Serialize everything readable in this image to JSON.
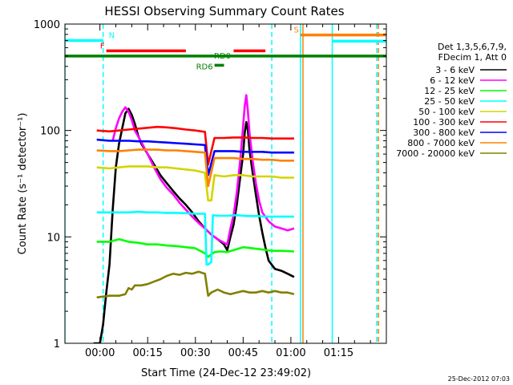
{
  "chart_data": {
    "type": "line",
    "title": "HESSI Observing Summary Count Rates",
    "xlabel": "Start Time (24-Dec-12 23:49:02)",
    "ylabel": "Count Rate (s⁻¹ detector⁻¹)",
    "yscale": "log",
    "ylim": [
      1,
      1000
    ],
    "xlim": [
      -11,
      90
    ],
    "x_unit": "minutes after 00:00",
    "x_tick_labels": [
      "00:00",
      "00:15",
      "00:30",
      "00:45",
      "01:00",
      "01:15"
    ],
    "x_ticks": [
      0,
      15,
      30,
      45,
      60,
      75
    ],
    "y_tick_labels": [
      "1",
      "10",
      "100",
      "1000"
    ],
    "y_ticks": [
      1,
      10,
      100,
      1000
    ],
    "timestamp": "25-Dec-2012 07:03",
    "legend": {
      "placement": "right",
      "header": [
        "Det 1,3,5,6,7,9,",
        "FDecim 1, Att 0"
      ]
    },
    "series": [
      {
        "name": "3 - 6 keV",
        "color": "#000000",
        "points": [
          [
            -2,
            1
          ],
          [
            0,
            1
          ],
          [
            1,
            1.5
          ],
          [
            2,
            3
          ],
          [
            3,
            5.5
          ],
          [
            4,
            18
          ],
          [
            5,
            45
          ],
          [
            6,
            75
          ],
          [
            7,
            105
          ],
          [
            8,
            145
          ],
          [
            9,
            160
          ],
          [
            10,
            140
          ],
          [
            11,
            115
          ],
          [
            12,
            90
          ],
          [
            13,
            75
          ],
          [
            15,
            60
          ],
          [
            17,
            48
          ],
          [
            19,
            38
          ],
          [
            21,
            32
          ],
          [
            23,
            27
          ],
          [
            25,
            23
          ],
          [
            27,
            20
          ],
          [
            29,
            17
          ],
          [
            31,
            14
          ],
          [
            33,
            12
          ],
          [
            35,
            10.5
          ],
          [
            37,
            9.5
          ],
          [
            39,
            8.5
          ],
          [
            40,
            7.5
          ],
          [
            41,
            10
          ],
          [
            42,
            13
          ],
          [
            43,
            20
          ],
          [
            44,
            35
          ],
          [
            45,
            60
          ],
          [
            45.5,
            95
          ],
          [
            46,
            120
          ],
          [
            46.5,
            100
          ],
          [
            47,
            65
          ],
          [
            48,
            40
          ],
          [
            49,
            25
          ],
          [
            50,
            16
          ],
          [
            51,
            11
          ],
          [
            52,
            8
          ],
          [
            53,
            6
          ],
          [
            55,
            5
          ],
          [
            57,
            4.8
          ],
          [
            59,
            4.5
          ],
          [
            61,
            4.2
          ]
        ]
      },
      {
        "name": "6 - 12 keV",
        "color": "#ff00ff",
        "points": [
          [
            4,
            80
          ],
          [
            5,
            105
          ],
          [
            6,
            130
          ],
          [
            7,
            150
          ],
          [
            8,
            165
          ],
          [
            9,
            150
          ],
          [
            10,
            125
          ],
          [
            11,
            100
          ],
          [
            13,
            78
          ],
          [
            15,
            60
          ],
          [
            17,
            45
          ],
          [
            19,
            35
          ],
          [
            21,
            29
          ],
          [
            23,
            25
          ],
          [
            25,
            21
          ],
          [
            27,
            18
          ],
          [
            29,
            15.5
          ],
          [
            31,
            13.5
          ],
          [
            33,
            12
          ],
          [
            35,
            10.5
          ],
          [
            37,
            9.5
          ],
          [
            39,
            8.8
          ],
          [
            40,
            8.5
          ],
          [
            41,
            12
          ],
          [
            42,
            16
          ],
          [
            43,
            26
          ],
          [
            44,
            50
          ],
          [
            45,
            110
          ],
          [
            45.5,
            170
          ],
          [
            46,
            215
          ],
          [
            46.5,
            150
          ],
          [
            47,
            95
          ],
          [
            48,
            52
          ],
          [
            49,
            32
          ],
          [
            50,
            22
          ],
          [
            51,
            17
          ],
          [
            53,
            14
          ],
          [
            55,
            12.5
          ],
          [
            57,
            12
          ],
          [
            59,
            11.5
          ],
          [
            61,
            12
          ]
        ]
      },
      {
        "name": "12 - 25 keV",
        "color": "#00ff00",
        "points": [
          [
            -1,
            9
          ],
          [
            3,
            9
          ],
          [
            6,
            9.5
          ],
          [
            9,
            9
          ],
          [
            12,
            8.8
          ],
          [
            15,
            8.5
          ],
          [
            18,
            8.5
          ],
          [
            21,
            8.3
          ],
          [
            24,
            8.2
          ],
          [
            27,
            8.0
          ],
          [
            30,
            7.8
          ],
          [
            33,
            7.0
          ],
          [
            34,
            6.5
          ],
          [
            36,
            7.2
          ],
          [
            38,
            7.3
          ],
          [
            40,
            7.2
          ],
          [
            42,
            7.5
          ],
          [
            45,
            8
          ],
          [
            48,
            7.8
          ],
          [
            51,
            7.6
          ],
          [
            54,
            7.4
          ],
          [
            57,
            7.4
          ],
          [
            61,
            7.3
          ]
        ]
      },
      {
        "name": "25 - 50 keV",
        "color": "#00ffff",
        "points": [
          [
            -1,
            17
          ],
          [
            3,
            17
          ],
          [
            6,
            17
          ],
          [
            9,
            17
          ],
          [
            12,
            17.2
          ],
          [
            15,
            17
          ],
          [
            18,
            17
          ],
          [
            21,
            16.8
          ],
          [
            24,
            16.8
          ],
          [
            27,
            16.7
          ],
          [
            30,
            16.5
          ],
          [
            33,
            16.5
          ],
          [
            33.5,
            5.5
          ],
          [
            34,
            5.5
          ],
          [
            35,
            5.8
          ],
          [
            35.5,
            16
          ],
          [
            37,
            15.8
          ],
          [
            40,
            15.8
          ],
          [
            43,
            16
          ],
          [
            46,
            15.7
          ],
          [
            49,
            15.7
          ],
          [
            52,
            15.5
          ],
          [
            55,
            15.5
          ],
          [
            58,
            15.5
          ],
          [
            61,
            15.5
          ]
        ]
      },
      {
        "name": "50 - 100 keV",
        "color": "#d4d400",
        "points": [
          [
            -1,
            45
          ],
          [
            3,
            44
          ],
          [
            6,
            45
          ],
          [
            9,
            46
          ],
          [
            12,
            46
          ],
          [
            15,
            46
          ],
          [
            18,
            45
          ],
          [
            21,
            45
          ],
          [
            24,
            44
          ],
          [
            27,
            43
          ],
          [
            30,
            42
          ],
          [
            33,
            40
          ],
          [
            34,
            22
          ],
          [
            35,
            22
          ],
          [
            36,
            38
          ],
          [
            39,
            37
          ],
          [
            42,
            38
          ],
          [
            45,
            38
          ],
          [
            48,
            37
          ],
          [
            51,
            37
          ],
          [
            54,
            37
          ],
          [
            57,
            36
          ],
          [
            61,
            36
          ]
        ]
      },
      {
        "name": "100 - 300 keV",
        "color": "#ff0000",
        "points": [
          [
            -1,
            100
          ],
          [
            3,
            98
          ],
          [
            6,
            100
          ],
          [
            9,
            102
          ],
          [
            12,
            104
          ],
          [
            15,
            106
          ],
          [
            18,
            108
          ],
          [
            21,
            107
          ],
          [
            24,
            105
          ],
          [
            27,
            102
          ],
          [
            30,
            100
          ],
          [
            33,
            97
          ],
          [
            34,
            48
          ],
          [
            36,
            85
          ],
          [
            39,
            85
          ],
          [
            42,
            86
          ],
          [
            45,
            86
          ],
          [
            48,
            85
          ],
          [
            51,
            85
          ],
          [
            54,
            84
          ],
          [
            57,
            84
          ],
          [
            61,
            84
          ]
        ]
      },
      {
        "name": "300 - 800 keV",
        "color": "#0000ff",
        "points": [
          [
            -1,
            82
          ],
          [
            3,
            80
          ],
          [
            6,
            80
          ],
          [
            9,
            80
          ],
          [
            12,
            79
          ],
          [
            15,
            79
          ],
          [
            18,
            78
          ],
          [
            21,
            77
          ],
          [
            24,
            76
          ],
          [
            27,
            75
          ],
          [
            30,
            74
          ],
          [
            33,
            73
          ],
          [
            34,
            38
          ],
          [
            36,
            64
          ],
          [
            39,
            64
          ],
          [
            42,
            64
          ],
          [
            45,
            63
          ],
          [
            48,
            63
          ],
          [
            51,
            63
          ],
          [
            54,
            62
          ],
          [
            57,
            62
          ],
          [
            61,
            62
          ]
        ]
      },
      {
        "name": "800 - 7000 keV",
        "color": "#ff8000",
        "points": [
          [
            -1,
            65
          ],
          [
            3,
            64
          ],
          [
            6,
            64
          ],
          [
            9,
            65
          ],
          [
            12,
            66
          ],
          [
            15,
            66
          ],
          [
            18,
            66
          ],
          [
            21,
            65
          ],
          [
            24,
            65
          ],
          [
            27,
            64
          ],
          [
            30,
            63
          ],
          [
            33,
            62
          ],
          [
            34,
            30
          ],
          [
            36,
            55
          ],
          [
            39,
            55
          ],
          [
            42,
            55
          ],
          [
            45,
            54
          ],
          [
            48,
            54
          ],
          [
            51,
            53
          ],
          [
            54,
            53
          ],
          [
            57,
            52
          ],
          [
            61,
            52
          ]
        ]
      },
      {
        "name": "7000 - 20000 keV",
        "color": "#808000",
        "points": [
          [
            -1,
            2.7
          ],
          [
            3,
            2.8
          ],
          [
            6,
            2.8
          ],
          [
            8,
            2.9
          ],
          [
            9,
            3.3
          ],
          [
            10,
            3.2
          ],
          [
            11,
            3.5
          ],
          [
            13,
            3.5
          ],
          [
            15,
            3.6
          ],
          [
            17,
            3.8
          ],
          [
            19,
            4.0
          ],
          [
            21,
            4.3
          ],
          [
            23,
            4.5
          ],
          [
            25,
            4.4
          ],
          [
            27,
            4.6
          ],
          [
            29,
            4.5
          ],
          [
            31,
            4.7
          ],
          [
            33,
            4.5
          ],
          [
            34,
            2.8
          ],
          [
            35,
            3.0
          ],
          [
            37,
            3.2
          ],
          [
            39,
            3.0
          ],
          [
            41,
            2.9
          ],
          [
            43,
            3.0
          ],
          [
            45,
            3.1
          ],
          [
            47,
            3.0
          ],
          [
            49,
            3.0
          ],
          [
            51,
            3.1
          ],
          [
            53,
            3.0
          ],
          [
            55,
            3.1
          ],
          [
            57,
            3.0
          ],
          [
            59,
            3.0
          ],
          [
            61,
            2.9
          ]
        ]
      }
    ],
    "annotations": [
      {
        "label": "N",
        "color": "#00ffff",
        "x_start": -11,
        "x_end": 1,
        "level": 700
      },
      {
        "label": "F",
        "color": "#ff0000",
        "x_start": 2,
        "x_end": 27,
        "level": 560
      },
      {
        "label": "",
        "color": "#ff0000",
        "x_start": 42,
        "x_end": 52,
        "level": 560
      },
      {
        "label": "RD0",
        "color": "#008000",
        "x_start": -11,
        "x_end": 90,
        "level": 500
      },
      {
        "label": "RD6",
        "color": "#008000",
        "x_start": 36,
        "x_end": 39,
        "level": 410
      },
      {
        "label": "S",
        "color": "#ff8000",
        "x_start": 63,
        "x_end": 90,
        "level": 790
      },
      {
        "label": "",
        "color": "#00ffff",
        "x_start": 73,
        "x_end": 90,
        "level": 690
      }
    ],
    "vertical_lines": [
      {
        "x": -11,
        "color": "#00ffff",
        "style": "solid"
      },
      {
        "x": 1,
        "color": "#00ffff",
        "style": "dashed"
      },
      {
        "x": 63,
        "color": "#00ffff",
        "style": "solid"
      },
      {
        "x": 63.8,
        "color": "#ff8000",
        "style": "solid"
      },
      {
        "x": 73,
        "color": "#00ffff",
        "style": "solid"
      },
      {
        "x": 87,
        "color": "#00ffff",
        "style": "dashed"
      },
      {
        "x": 87.5,
        "color": "#ff8000",
        "style": "dashed"
      },
      {
        "x": 54,
        "color": "#00ffff",
        "style": "dashed"
      }
    ]
  }
}
